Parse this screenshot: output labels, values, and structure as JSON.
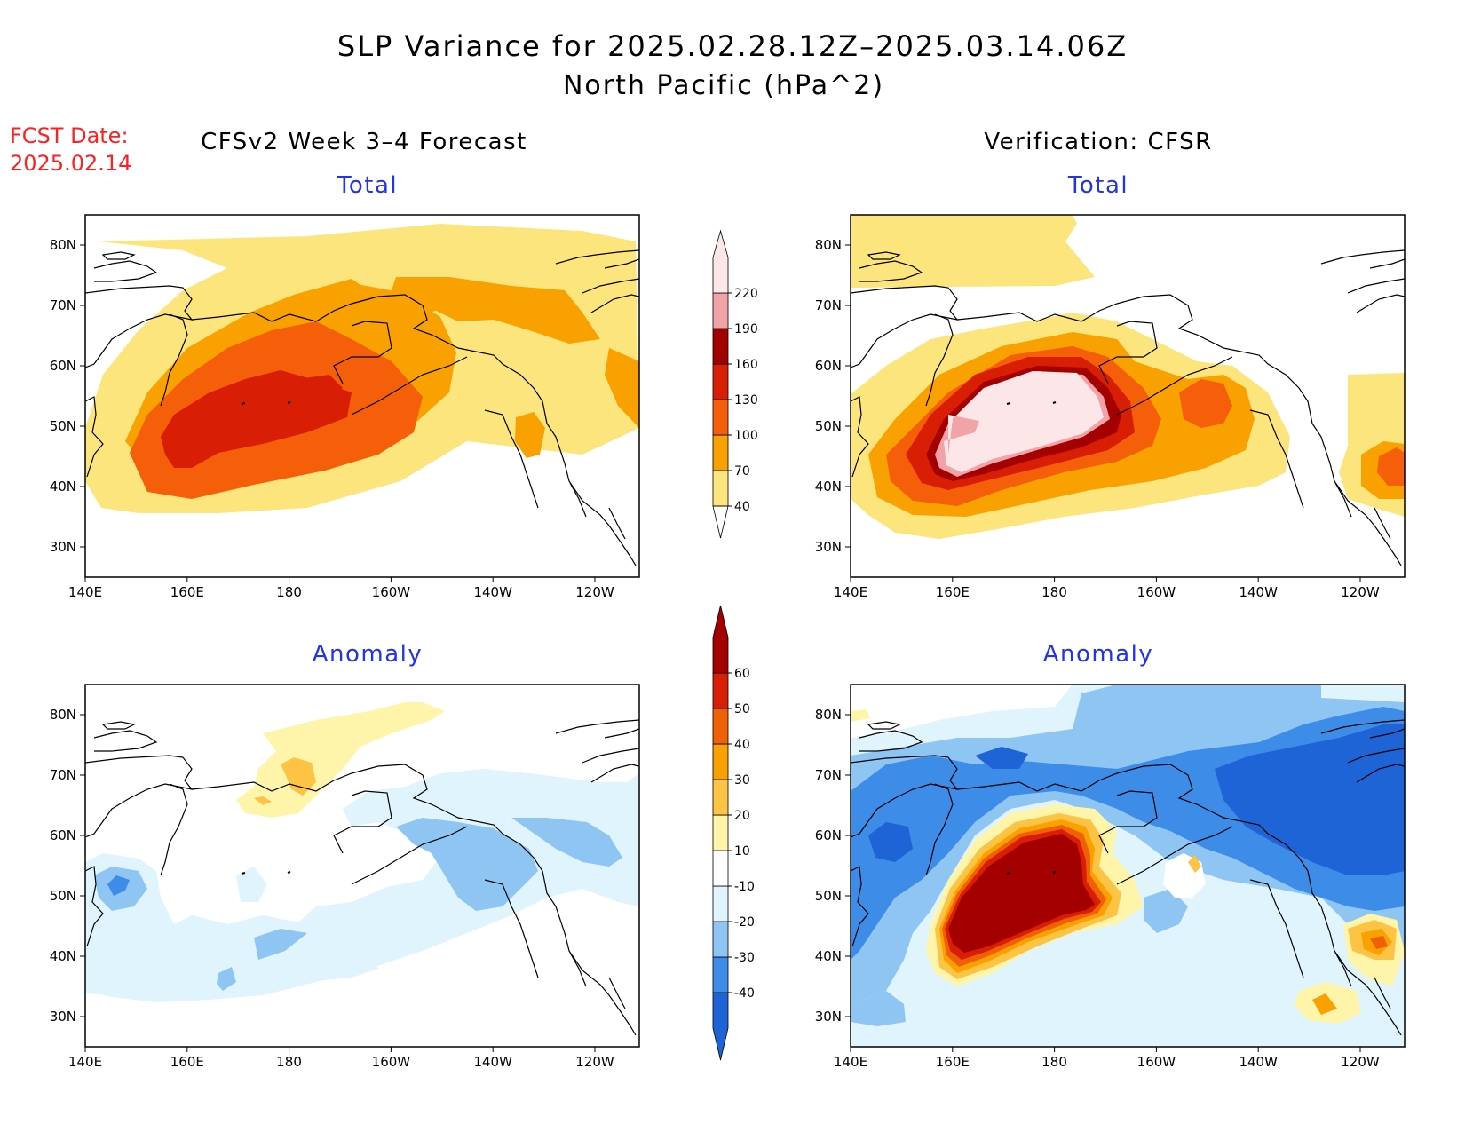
{
  "title": {
    "line1": "SLP Variance for 2025.02.28.12Z–2025.03.14.06Z",
    "line2": "North Pacific (hPa^2)"
  },
  "fcst": {
    "label": "FCST Date:",
    "date": "2025.02.14"
  },
  "columns": {
    "left": "CFSv2 Week 3–4 Forecast",
    "right": "Verification: CFSR"
  },
  "panel_titles": {
    "total": "Total",
    "anomaly": "Anomaly"
  },
  "axes": {
    "lon_labels": [
      "140E",
      "160E",
      "180",
      "160W",
      "140W",
      "120W"
    ],
    "lat_labels": [
      "80N",
      "70N",
      "60N",
      "50N",
      "40N",
      "30N"
    ]
  },
  "colorbars": {
    "total": {
      "levels": [
        "40",
        "70",
        "100",
        "130",
        "160",
        "190",
        "220"
      ],
      "colors": [
        "#fbe57c",
        "#f8a100",
        "#f55f0a",
        "#d81e05",
        "#a50000",
        "#f2a3a8",
        "#fde6e8"
      ]
    },
    "anomaly": {
      "levels": [
        "-40",
        "-30",
        "-20",
        "-10",
        "10",
        "20",
        "30",
        "40",
        "50",
        "60"
      ],
      "colors": [
        "#1e64d6",
        "#3d8ce8",
        "#8ec5f2",
        "#dff4fc",
        "#ffffff",
        "#fff5aa",
        "#fcc344",
        "#f8a100",
        "#f06005",
        "#d81e05",
        "#a50000"
      ]
    }
  },
  "styles": {
    "title_color": "#000000",
    "panel_title_color": "#2233ee",
    "fcst_color": "#ff2020",
    "coast_color": "#000000"
  }
}
